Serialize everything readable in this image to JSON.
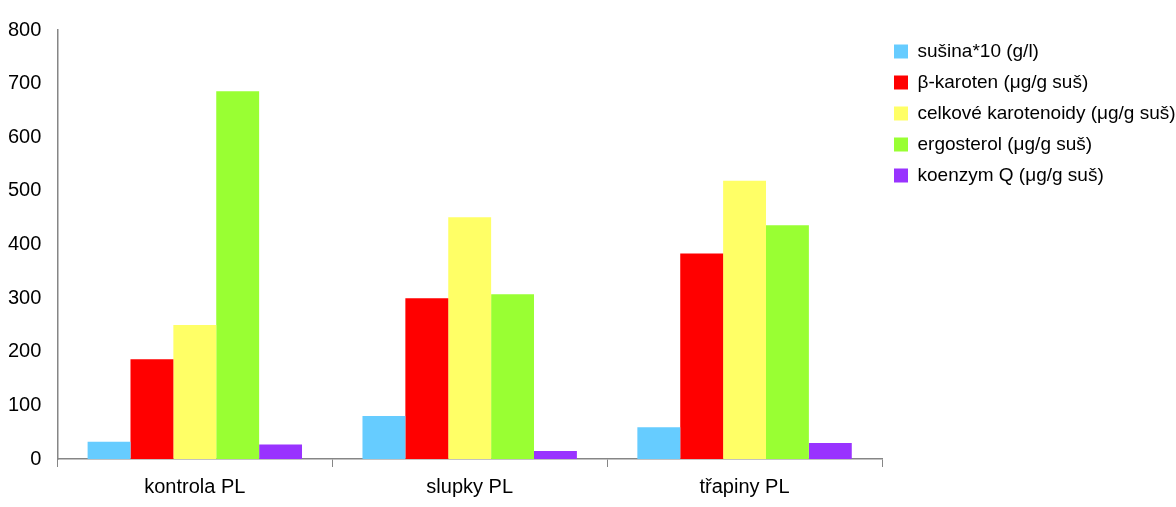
{
  "chart_data": {
    "type": "bar",
    "categories": [
      "kontrola PL",
      "slupky PL",
      "třapiny PL"
    ],
    "series": [
      {
        "name": "sušina*10 (g/l)",
        "color": "#66ccff",
        "values": [
          32,
          80,
          59
        ]
      },
      {
        "name": "β-karoten (μg/g suš)",
        "color": "#ff0000",
        "values": [
          186,
          300,
          383
        ]
      },
      {
        "name": "celkové karotenoidy (μg/g suš)",
        "color": "#ffff66",
        "values": [
          250,
          451,
          519
        ]
      },
      {
        "name": "ergosterol (μg/g suš)",
        "color": "#99ff33",
        "values": [
          686,
          307,
          436
        ]
      },
      {
        "name": "koenzym Q (μg/g suš)",
        "color": "#9933ff",
        "values": [
          27,
          15,
          30
        ]
      }
    ],
    "ylim": [
      0,
      800
    ],
    "yticks": [
      0,
      100,
      200,
      300,
      400,
      500,
      600,
      700,
      800
    ],
    "grid": false,
    "legend": "top right"
  }
}
